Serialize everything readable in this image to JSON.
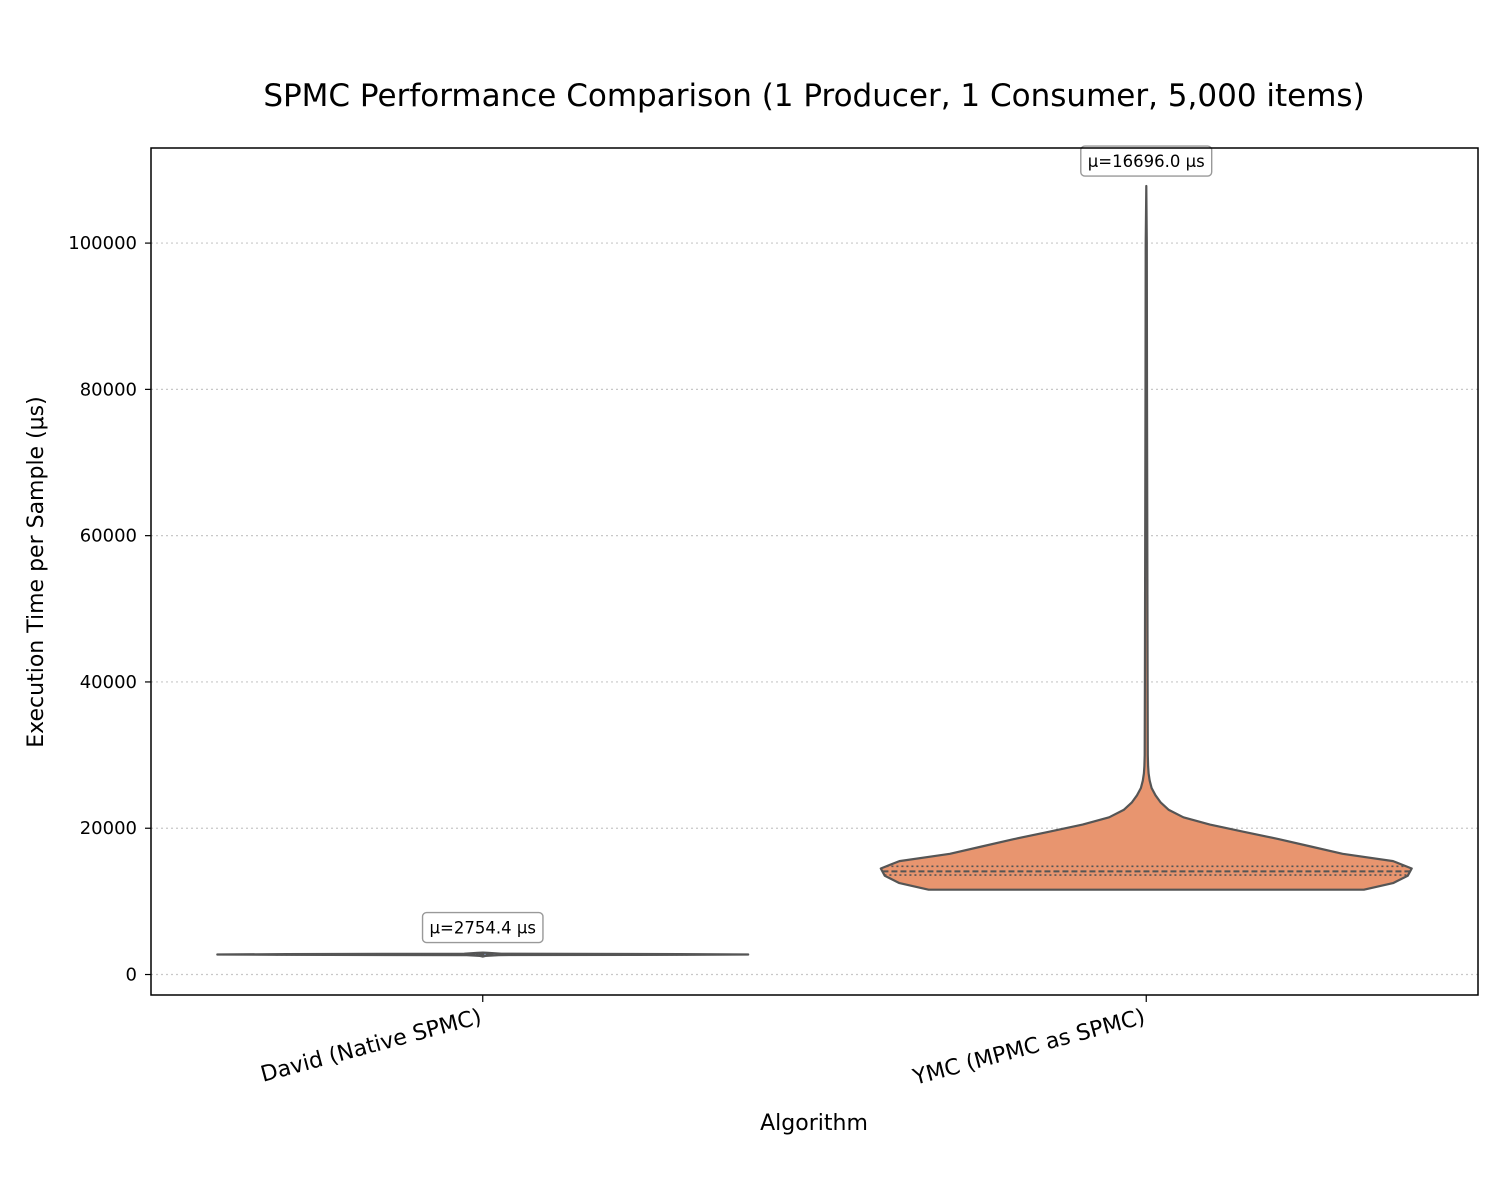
{
  "chart_data": {
    "type": "violin",
    "title": "SPMC Performance Comparison (1 Producer, 1 Consumer, 5,000 items)",
    "xlabel": "Algorithm",
    "ylabel": "Execution Time per Sample (μs)",
    "ylim": [
      -2800,
      113000
    ],
    "yticks": [
      0,
      20000,
      40000,
      60000,
      80000,
      100000
    ],
    "grid": "y-dotted",
    "categories": [
      "David (Native SPMC)",
      "YMC (MPMC as SPMC)"
    ],
    "colors": [
      "#8da0cb",
      "#e8956f"
    ],
    "edge_color": "#555555",
    "violins": [
      {
        "name": "David (Native SPMC)",
        "color": "#8da0cb",
        "mean": 2754.4,
        "mean_label": "μ=2754.4 μs",
        "min": 2450,
        "max": 3000,
        "quartiles": [
          2700,
          2740,
          2790
        ],
        "profile": [
          [
            2450,
            0.0
          ],
          [
            2550,
            0.01
          ],
          [
            2650,
            0.06
          ],
          [
            2700,
            0.78
          ],
          [
            2740,
            1.0
          ],
          [
            2790,
            0.74
          ],
          [
            2850,
            0.07
          ],
          [
            2950,
            0.02
          ],
          [
            3000,
            0.0
          ]
        ]
      },
      {
        "name": "YMC (MPMC as SPMC)",
        "color": "#e8956f",
        "mean": 16696.0,
        "mean_label": "μ=16696.0 μs",
        "min": 11600,
        "max": 107800,
        "quartiles": [
          13600,
          14100,
          14800
        ],
        "profile": [
          [
            11600,
            0.82
          ],
          [
            12500,
            0.93
          ],
          [
            13500,
            0.985
          ],
          [
            14500,
            1.0
          ],
          [
            15500,
            0.93
          ],
          [
            16500,
            0.74
          ],
          [
            17500,
            0.62
          ],
          [
            18500,
            0.5
          ],
          [
            19500,
            0.37
          ],
          [
            20500,
            0.24
          ],
          [
            21500,
            0.14
          ],
          [
            22500,
            0.085
          ],
          [
            23500,
            0.055
          ],
          [
            24500,
            0.035
          ],
          [
            25500,
            0.02
          ],
          [
            26500,
            0.013
          ],
          [
            27500,
            0.009
          ],
          [
            28500,
            0.007
          ],
          [
            30000,
            0.006
          ],
          [
            40000,
            0.005
          ],
          [
            60000,
            0.004
          ],
          [
            80000,
            0.003
          ],
          [
            100000,
            0.002
          ],
          [
            107800,
            0.0
          ]
        ]
      }
    ]
  }
}
